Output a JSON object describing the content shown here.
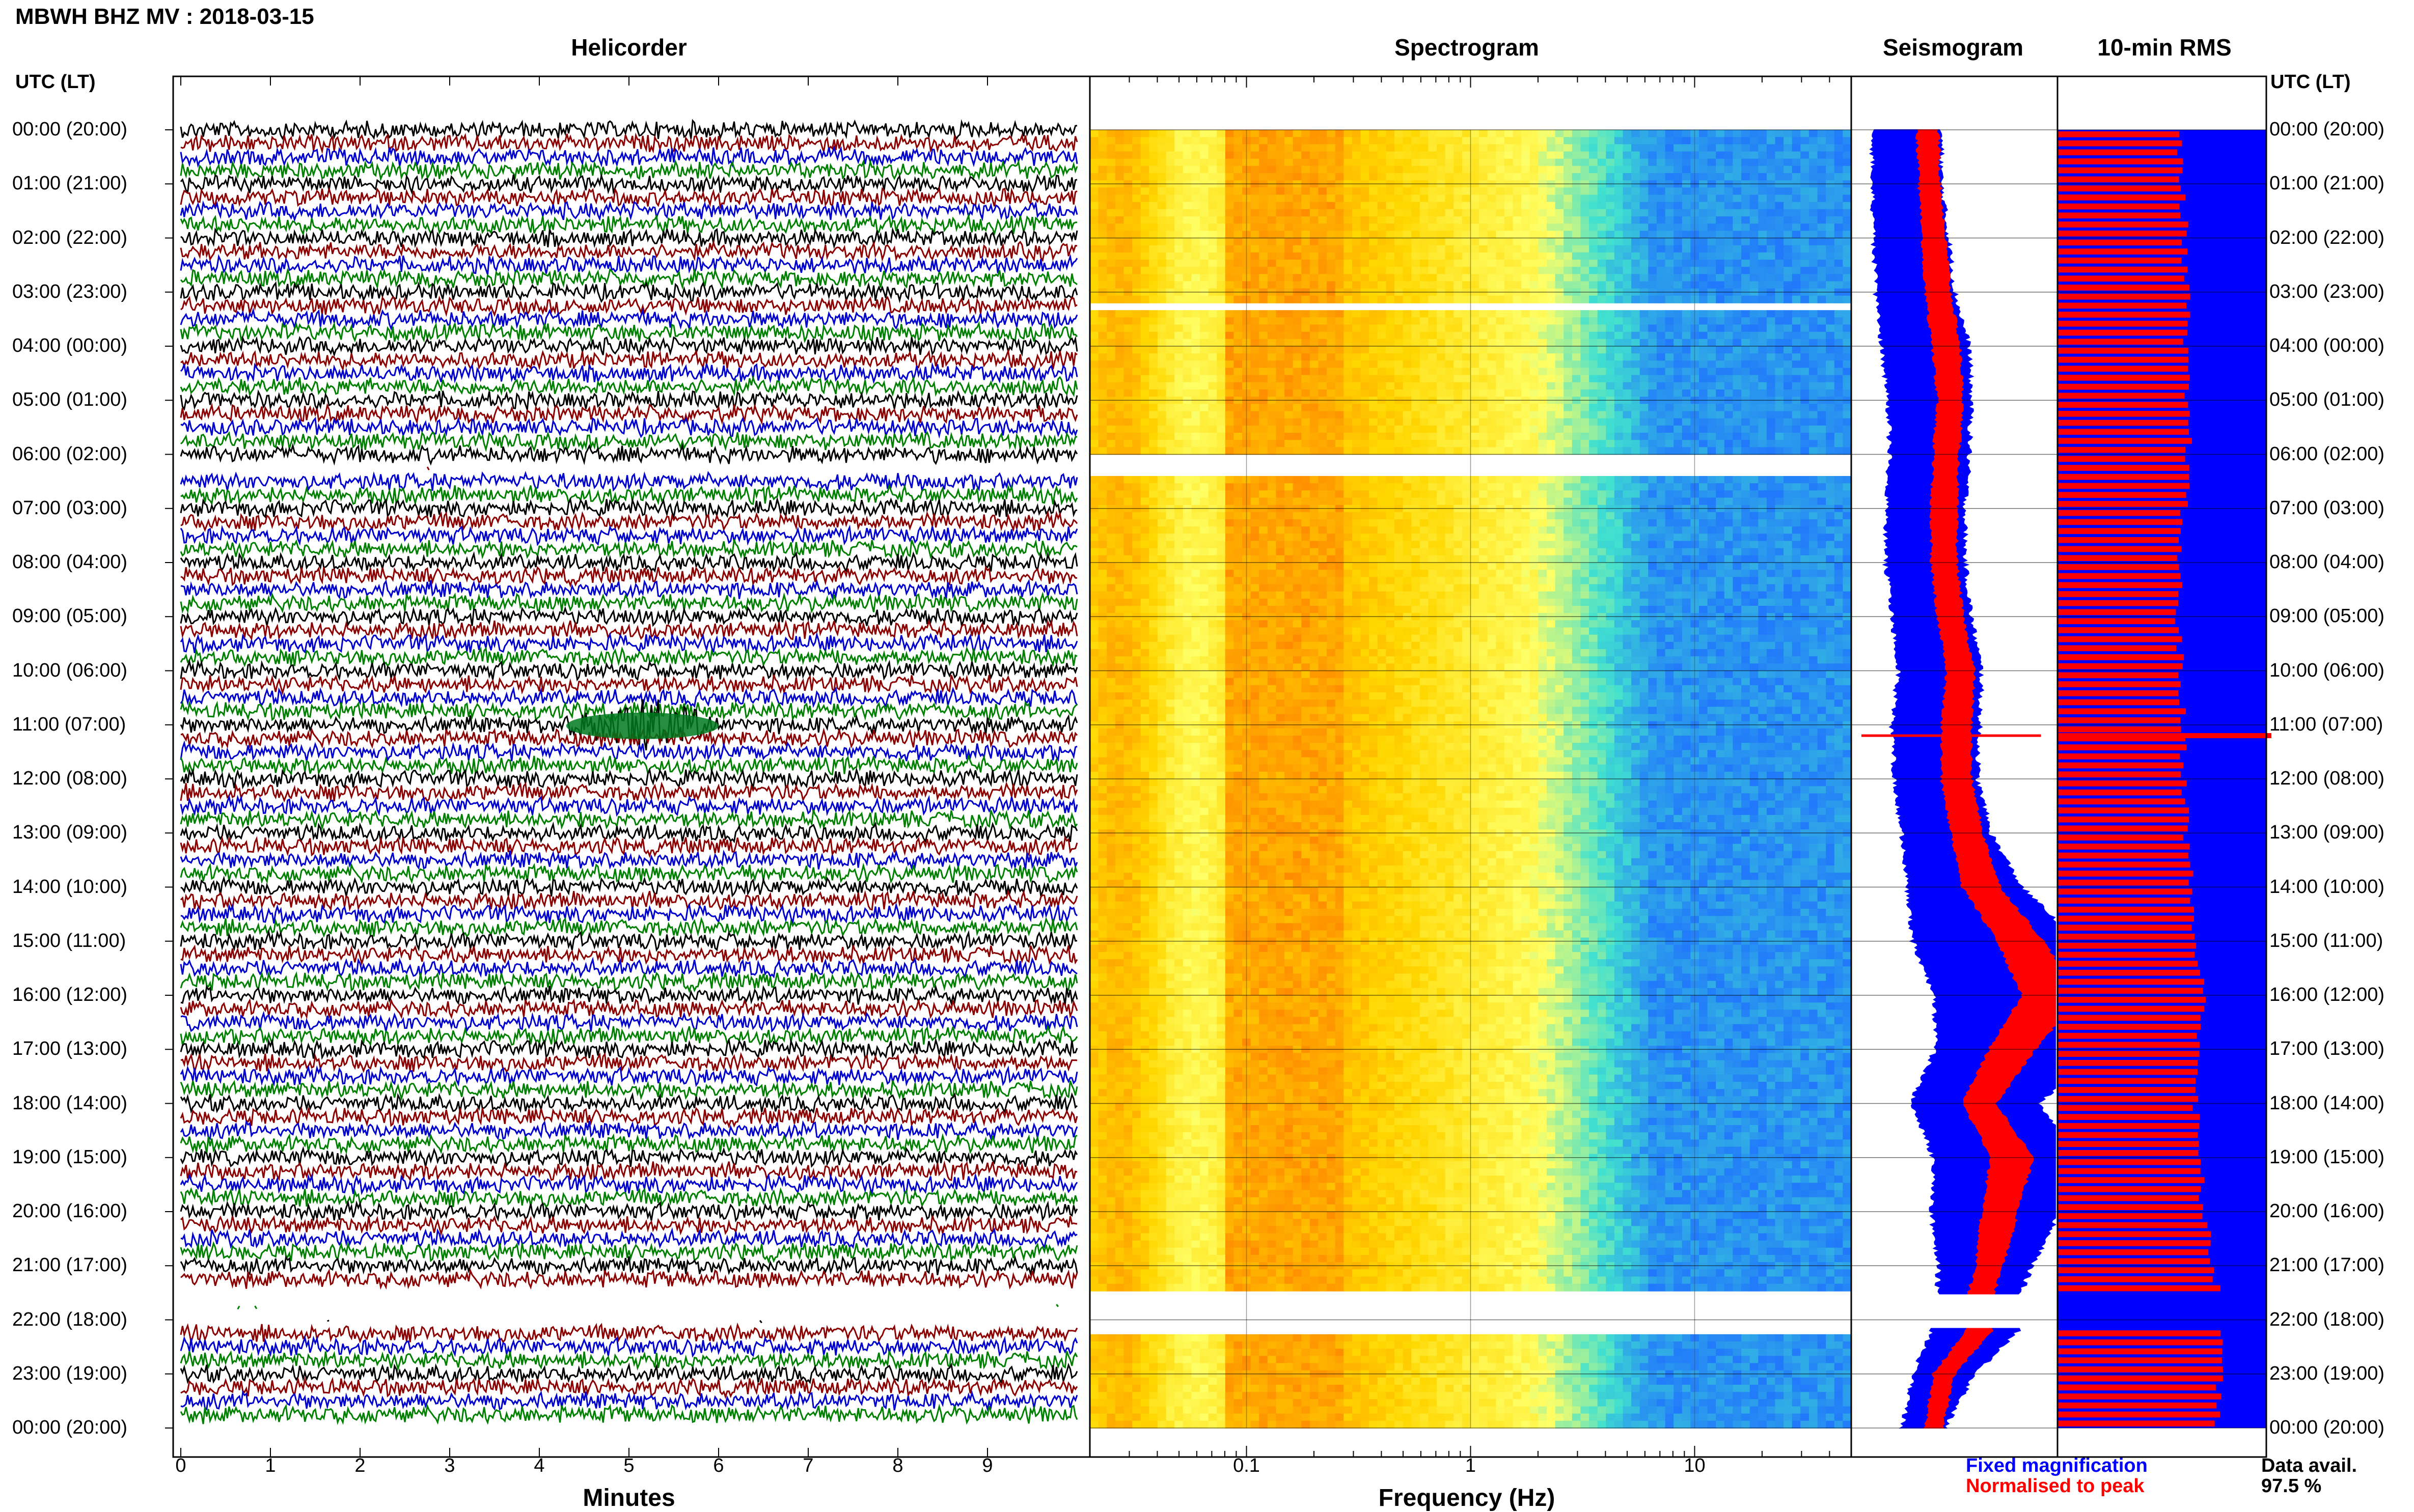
{
  "title": "MBWH BHZ MV : 2018-03-15",
  "panels": {
    "helicorder": "Helicorder",
    "spectrogram": "Spectrogram",
    "seismogram": "Seismogram",
    "rms": "10-min RMS"
  },
  "utc_header": "UTC (LT)",
  "hour_labels": [
    "00:00 (20:00)",
    "01:00 (21:00)",
    "02:00 (22:00)",
    "03:00 (23:00)",
    "04:00 (00:00)",
    "05:00 (01:00)",
    "06:00 (02:00)",
    "07:00 (03:00)",
    "08:00 (04:00)",
    "09:00 (05:00)",
    "10:00 (06:00)",
    "11:00 (07:00)",
    "12:00 (08:00)",
    "13:00 (09:00)",
    "14:00 (10:00)",
    "15:00 (11:00)",
    "16:00 (12:00)",
    "17:00 (13:00)",
    "18:00 (14:00)",
    "19:00 (15:00)",
    "20:00 (16:00)",
    "21:00 (17:00)",
    "22:00 (18:00)",
    "23:00 (19:00)",
    "00:00 (20:00)"
  ],
  "helicorder_xlabel": "Minutes",
  "minute_ticks": [
    "0",
    "1",
    "2",
    "3",
    "4",
    "5",
    "6",
    "7",
    "8",
    "9"
  ],
  "spectrogram_xlabel": "Frequency (Hz)",
  "freq_ticks": [
    "0.1",
    "1",
    "10"
  ],
  "legend": {
    "fixed": "Fixed magnification",
    "normalised": "Normalised to peak",
    "fixed_color": "#0000ff",
    "normalised_color": "#ff0000"
  },
  "data_availability": {
    "label": "Data avail.",
    "value": "97.5 %"
  },
  "chart_data": [
    {
      "type": "line",
      "panel": "Helicorder",
      "xlabel": "Minutes",
      "x_range": [
        0,
        10
      ],
      "trace_colors": [
        "#000000",
        "#8b0000",
        "#0000cd",
        "#008000"
      ],
      "events": [
        {
          "hour": 11.0,
          "minutes": [
            4.3,
            6.0
          ]
        }
      ],
      "gaps_hours": [
        [
          6.05,
          6.35
        ],
        [
          21.5,
          22.1
        ]
      ]
    },
    {
      "type": "heatmap",
      "panel": "Spectrogram",
      "xlabel": "Frequency (Hz)",
      "x_scale": "log",
      "x_range": [
        0.02,
        50
      ],
      "colormap": [
        "#ff8c00",
        "#ffd700",
        "#ffff66",
        "#40e0d0",
        "#1e6fff"
      ],
      "gaps_hours": [
        [
          3.2,
          3.3
        ],
        [
          6.0,
          6.4
        ],
        [
          21.5,
          22.2
        ]
      ]
    },
    {
      "type": "area",
      "panel": "Seismogram",
      "series": [
        {
          "name": "Fixed magnification",
          "color": "#0000ff",
          "hours": [
            0,
            1,
            2,
            3,
            4,
            5,
            6,
            7,
            8,
            9,
            10,
            11,
            12,
            13,
            14,
            15,
            16,
            17,
            18,
            19,
            20,
            21,
            21.5,
            22.2,
            23,
            24
          ],
          "half_width": [
            0.33,
            0.33,
            0.36,
            0.38,
            0.42,
            0.4,
            0.38,
            0.38,
            0.38,
            0.38,
            0.4,
            0.42,
            0.4,
            0.43,
            0.55,
            0.8,
            0.95,
            0.78,
            0.62,
            0.7,
            0.62,
            0.45,
            0.4,
            0.42,
            0.3,
            0.2
          ],
          "center": [
            0.27,
            0.27,
            0.29,
            0.31,
            0.36,
            0.38,
            0.38,
            0.36,
            0.36,
            0.39,
            0.43,
            0.41,
            0.41,
            0.46,
            0.55,
            0.7,
            0.88,
            0.8,
            0.6,
            0.75,
            0.7,
            0.65,
            0.62,
            0.6,
            0.45,
            0.35
          ]
        },
        {
          "name": "Normalised to peak",
          "color": "#ff0000",
          "hours": [
            0,
            1,
            2,
            3,
            4,
            5,
            6,
            7,
            8,
            9,
            10,
            11,
            12,
            13,
            14,
            15,
            16,
            17,
            18,
            19,
            20,
            21,
            21.5,
            22.2,
            23,
            24
          ],
          "half_width": [
            0.1,
            0.1,
            0.11,
            0.12,
            0.13,
            0.12,
            0.12,
            0.12,
            0.12,
            0.12,
            0.13,
            0.14,
            0.14,
            0.15,
            0.18,
            0.22,
            0.28,
            0.22,
            0.16,
            0.2,
            0.17,
            0.13,
            0.12,
            0.13,
            0.1,
            0.08
          ],
          "center": [
            0.37,
            0.38,
            0.4,
            0.42,
            0.46,
            0.48,
            0.46,
            0.45,
            0.45,
            0.48,
            0.53,
            0.51,
            0.51,
            0.56,
            0.63,
            0.82,
            0.97,
            0.78,
            0.62,
            0.78,
            0.72,
            0.67,
            0.63,
            0.62,
            0.45,
            0.4
          ]
        }
      ]
    },
    {
      "type": "bar",
      "panel": "10-min RMS",
      "orientation": "horizontal",
      "series": [
        {
          "name": "Fixed magnification",
          "color": "#0000ff",
          "value": 1.0
        },
        {
          "name": "Normalised to peak",
          "color": "#ff0000",
          "hours": [
            0,
            1,
            2,
            3,
            4,
            5,
            6,
            7,
            8,
            9,
            10,
            11,
            12,
            13,
            14,
            15,
            16,
            17,
            18,
            19,
            20,
            21,
            22,
            23,
            24
          ],
          "values": [
            0.58,
            0.6,
            0.61,
            0.62,
            0.61,
            0.62,
            0.63,
            0.6,
            0.58,
            0.58,
            0.59,
            0.6,
            0.61,
            0.62,
            0.64,
            0.66,
            0.7,
            0.68,
            0.66,
            0.68,
            0.7,
            0.75,
            0.8,
            0.78,
            0.75
          ]
        }
      ],
      "spike_hour": 11.2
    }
  ]
}
